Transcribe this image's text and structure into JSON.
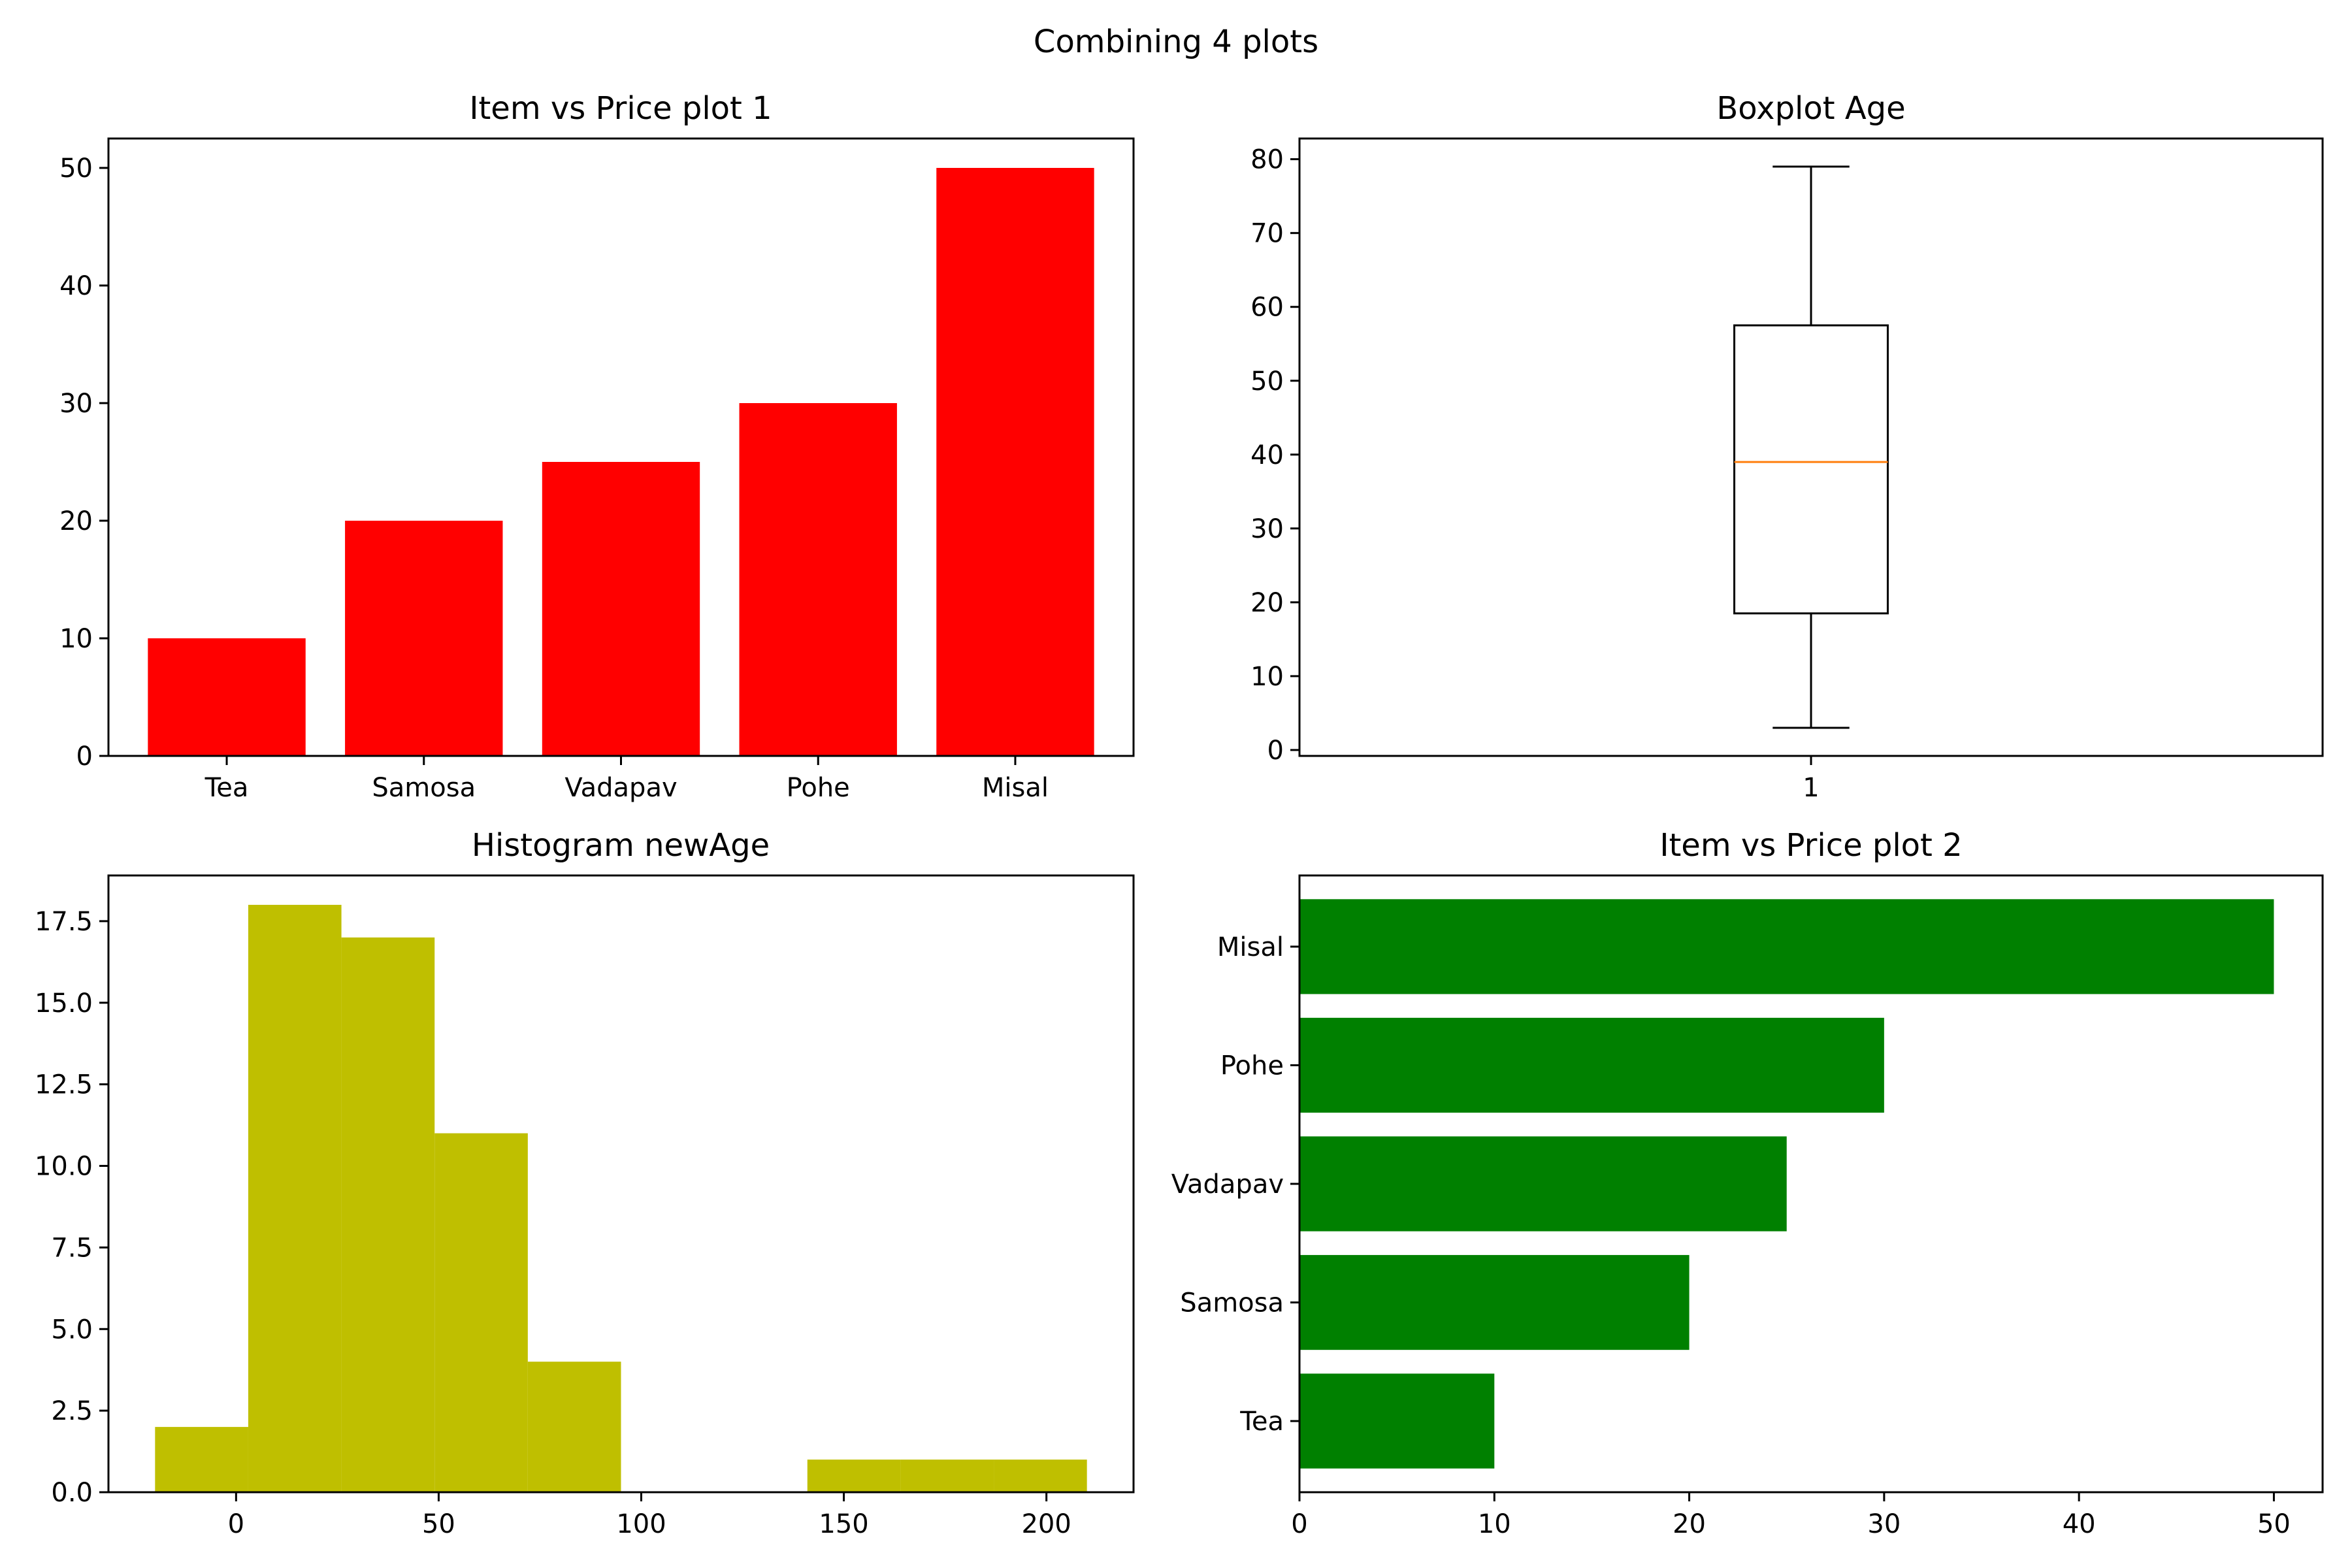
{
  "figure": {
    "suptitle": "Combining 4 plots"
  },
  "chart_data": [
    {
      "type": "bar",
      "orientation": "vertical",
      "title": "Item vs Price plot 1",
      "xlabel": "",
      "ylabel": "",
      "categories": [
        "Tea",
        "Samosa",
        "Vadapav",
        "Pohe",
        "Misal"
      ],
      "values": [
        10,
        20,
        25,
        30,
        50
      ],
      "color": "#ff0000",
      "ylim": [
        0,
        52.5
      ],
      "yticks": [
        0,
        10,
        20,
        30,
        40,
        50
      ],
      "grid": false
    },
    {
      "type": "box",
      "title": "Boxplot Age",
      "xlabel": "",
      "ylabel": "",
      "categories": [
        "1"
      ],
      "stats": {
        "whisker_low": 3,
        "q1": 18.5,
        "median": 39,
        "q3": 57.5,
        "whisker_high": 79
      },
      "median_color": "#ff7f0e",
      "ylim": [
        -0.8,
        82.8
      ],
      "yticks": [
        0,
        10,
        20,
        30,
        40,
        50,
        60,
        70,
        80
      ],
      "grid": false
    },
    {
      "type": "histogram",
      "title": "Histogram newAge",
      "xlabel": "",
      "ylabel": "",
      "bin_edges": [
        -20,
        3,
        26,
        49,
        72,
        95,
        118,
        141,
        164,
        187,
        210
      ],
      "counts": [
        2,
        18,
        17,
        11,
        4,
        0,
        0,
        1,
        1,
        1
      ],
      "color": "#bfbf00",
      "xlim": [
        -31.5,
        221.5
      ],
      "ylim": [
        0,
        18.9
      ],
      "xticks": [
        0,
        50,
        100,
        150,
        200
      ],
      "yticks": [
        "0.0",
        "2.5",
        "5.0",
        "7.5",
        "10.0",
        "12.5",
        "15.0",
        "17.5"
      ],
      "grid": false
    },
    {
      "type": "bar",
      "orientation": "horizontal",
      "title": "Item vs Price plot 2",
      "xlabel": "",
      "ylabel": "",
      "categories": [
        "Tea",
        "Samosa",
        "Vadapav",
        "Pohe",
        "Misal"
      ],
      "values": [
        10,
        20,
        25,
        30,
        50
      ],
      "color": "#008000",
      "xlim": [
        0,
        52.5
      ],
      "xticks": [
        0,
        10,
        20,
        30,
        40,
        50
      ],
      "grid": false
    }
  ]
}
